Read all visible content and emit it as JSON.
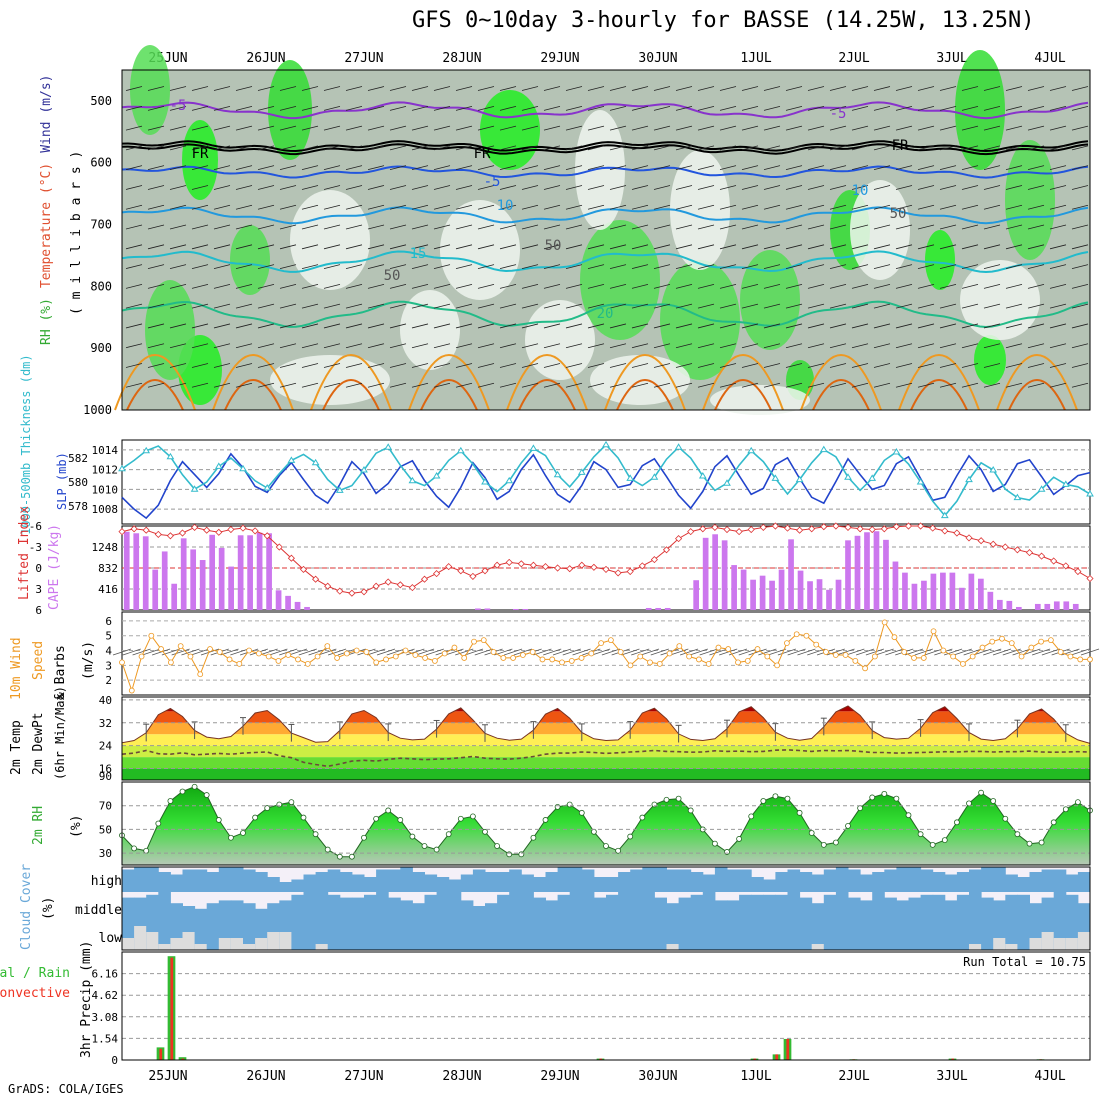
{
  "title": "GFS 0~10day 3-hourly for BASSE (14.25W, 13.25N)",
  "credit": "GrADS: COLA/IGES",
  "date_labels": [
    "25JUN",
    "26JUN",
    "27JUN",
    "28JUN",
    "29JUN",
    "30JUN",
    "1JUL",
    "2JUL",
    "3JUL",
    "4JUL"
  ],
  "panels": {
    "profile": {
      "ylabels": [
        "RH (%)",
        "Temperature (°C)",
        "Wind (m/s)"
      ],
      "ylabel_colors": [
        "#33aa33",
        "#e05030",
        "#333399"
      ],
      "axis_label": "( m i l l i b a r s )",
      "pressure_ticks": [
        "500",
        "600",
        "700",
        "800",
        "900",
        "1000"
      ],
      "contour_labels": [
        "-5",
        "FR",
        "FR",
        "FR",
        "-5",
        "-5",
        "10",
        "10",
        "15",
        "20",
        "50",
        "50",
        "50"
      ]
    },
    "pressure": {
      "ylabel_left": "1000-500mb Thickness (dm)",
      "ylabel_right": "SLP (mb)",
      "left_ticks": [
        "582",
        "580",
        "578"
      ],
      "right_ticks": [
        "1014",
        "1012",
        "1010",
        "1008"
      ]
    },
    "cape": {
      "ylabel_left": "Lifted Index",
      "ylabel_right": "CAPE (J/kg)",
      "li_ticks": [
        "-6",
        "-3",
        "0",
        "3",
        "6"
      ],
      "cape_ticks": [
        "1248",
        "832",
        "416"
      ]
    },
    "wind": {
      "ylabel_1": "10m Wind",
      "ylabel_2": "Speed",
      "ylabel_3": "& Barbs",
      "unit": "(m/s)",
      "ticks": [
        "6",
        "5",
        "4",
        "3",
        "2"
      ]
    },
    "temp": {
      "ylabel_1": "2m Temp",
      "ylabel_2": "2m DewPt",
      "ylabel_3": "(6hr Min/Max)",
      "ticks": [
        "40",
        "32",
        "24",
        "16",
        "90"
      ]
    },
    "rh": {
      "ylabel": "2m RH",
      "unit": "(%)",
      "ticks": [
        "70",
        "50",
        "30"
      ]
    },
    "cloud": {
      "ylabel": "Cloud Cover",
      "unit": "(%)",
      "levels": [
        "high",
        "middle",
        "low"
      ]
    },
    "precip": {
      "ylabel_1": "tal / Rain",
      "ylabel_2": "Convective",
      "axis_label": "3hr Precip (mm)",
      "ticks": [
        "6.16",
        "4.62",
        "3.08",
        "1.54",
        "0"
      ],
      "run_total": "Run Total = 10.75"
    }
  },
  "colors": {
    "rh_green": "#33cc33",
    "temp_label": "#e06030",
    "slp": "#2244cc",
    "thickness": "#33bbcc",
    "lifted_index": "#dd3333",
    "cape_bar": "#cc77ee",
    "wind_speed": "#ee9922",
    "cloud": "#6aa8d8",
    "precip_total": "#33bb33",
    "precip_conv": "#ee3322"
  },
  "chart_data": {
    "type": "line",
    "x_unit": "hours from 00Z 25JUN",
    "x_step_hours": 3,
    "pressure_profile": {
      "levels_mb": [
        500,
        600,
        700,
        800,
        900,
        1000
      ],
      "contours_degC": [
        {
          "label": "-5",
          "approx_pressure_mb": 510
        },
        {
          "label": "FR",
          "approx_pressure_mb": 575
        },
        {
          "label": "-5",
          "approx_pressure_mb": 618
        },
        {
          "label": "10",
          "approx_pressure_mb": 685
        },
        {
          "label": "15",
          "approx_pressure_mb": 760
        },
        {
          "label": "20",
          "approx_pressure_mb": 840
        }
      ]
    },
    "slp_mb": [
      1009.2,
      1008.0,
      1007.1,
      1008.4,
      1010.9,
      1012.8,
      1011.5,
      1010.2,
      1011.6,
      1013.6,
      1012.2,
      1010.3,
      1009.7,
      1011.4,
      1012.7,
      1011.0,
      1009.4,
      1008.6,
      1010.5,
      1012.8,
      1011.6,
      1009.6,
      1010.6,
      1012.3,
      1012.9,
      1010.9,
      1009.3,
      1008.2,
      1010.2,
      1012.7,
      1011.2,
      1009.0,
      1009.8,
      1012.0,
      1013.5,
      1011.4,
      1009.5,
      1008.7,
      1010.4,
      1012.8,
      1012.0,
      1010.2,
      1010.5,
      1012.4,
      1013.1,
      1011.3,
      1009.4,
      1008.1,
      1009.8,
      1012.3,
      1013.4,
      1011.4,
      1009.5,
      1010.1,
      1012.5,
      1013.2,
      1011.1,
      1009.2,
      1008.6,
      1010.8,
      1013.1,
      1011.5,
      1010.0,
      1010.4,
      1012.6,
      1013.3,
      1011.1,
      1008.9,
      1009.2,
      1011.4,
      1013.4,
      1012.0,
      1009.8,
      1010.5,
      1012.6,
      1013.0,
      1011.3,
      1009.5,
      1010.4,
      1011.4,
      1011.7
    ],
    "thickness_dm": [
      581.1,
      581.8,
      582.6,
      583.0,
      582.1,
      580.6,
      579.4,
      580.0,
      581.3,
      582.0,
      581.1,
      580.1,
      579.5,
      580.7,
      581.8,
      582.3,
      581.6,
      580.2,
      579.3,
      579.7,
      581.0,
      582.4,
      582.9,
      581.4,
      580.1,
      579.7,
      580.5,
      581.8,
      582.6,
      581.5,
      580.0,
      579.2,
      580.1,
      581.6,
      582.8,
      582.2,
      580.6,
      579.6,
      580.8,
      582.1,
      583.1,
      582.0,
      580.3,
      579.7,
      580.4,
      581.9,
      582.9,
      582.0,
      580.5,
      579.3,
      579.9,
      581.4,
      582.6,
      581.7,
      580.3,
      579.0,
      580.2,
      581.6,
      582.7,
      582.1,
      580.4,
      579.3,
      580.3,
      581.8,
      582.5,
      581.5,
      580.0,
      578.4,
      577.2,
      578.4,
      580.2,
      581.6,
      581.0,
      579.4,
      578.7,
      578.5,
      579.4,
      580.4,
      579.8,
      579.6,
      579.0
    ],
    "lifted_index": [
      -5.2,
      -5.6,
      -5.4,
      -4.8,
      -4.6,
      -5.0,
      -5.8,
      -5.4,
      -5.1,
      -5.5,
      -5.7,
      -5.3,
      -4.6,
      -3.0,
      -1.4,
      0.2,
      1.6,
      2.6,
      3.3,
      3.6,
      3.4,
      2.6,
      2.0,
      2.4,
      2.8,
      1.6,
      0.8,
      -0.2,
      0.4,
      1.2,
      0.4,
      -0.4,
      -0.8,
      -0.6,
      -0.4,
      -0.2,
      0.0,
      0.1,
      -0.4,
      -0.1,
      0.2,
      0.7,
      0.5,
      -0.3,
      -1.2,
      -2.6,
      -4.2,
      -5.2,
      -5.6,
      -5.8,
      -5.5,
      -5.2,
      -5.5,
      -5.8,
      -6.0,
      -5.7,
      -5.4,
      -5.6,
      -5.9,
      -6.0,
      -5.8,
      -5.6,
      -5.5,
      -5.6,
      -5.9,
      -6.0,
      -6.0,
      -5.7,
      -5.3,
      -5.0,
      -4.3,
      -3.9,
      -3.4,
      -3.0,
      -2.6,
      -2.2,
      -1.7,
      -1.0,
      -0.3,
      0.5,
      1.5
    ],
    "cape_jkg": [
      1550,
      1520,
      1460,
      800,
      1160,
      520,
      1420,
      1200,
      990,
      1490,
      1230,
      860,
      1480,
      1480,
      1530,
      1520,
      390,
      280,
      160,
      60,
      0,
      0,
      0,
      0,
      0,
      0,
      0,
      0,
      0,
      0,
      0,
      0,
      0,
      0,
      0,
      0,
      0,
      30,
      30,
      0,
      0,
      20,
      20,
      0,
      0,
      0,
      0,
      0,
      0,
      0,
      0,
      0,
      0,
      0,
      0,
      40,
      40,
      40,
      0,
      0,
      590,
      1430,
      1500,
      1380,
      890,
      800,
      600,
      680,
      580,
      800,
      1400,
      780,
      570,
      610,
      400,
      600,
      1380,
      1470,
      1540,
      1560,
      1390,
      960,
      740,
      520,
      580,
      720,
      740,
      740,
      440,
      720,
      620,
      360,
      200,
      180,
      60,
      0,
      120,
      120,
      170,
      170,
      120,
      0
    ],
    "wind_speed_ms": [
      3.2,
      1.3,
      3.6,
      5.0,
      4.1,
      3.2,
      4.3,
      3.6,
      2.4,
      4.1,
      3.9,
      3.4,
      3.1,
      4.0,
      3.8,
      3.6,
      3.3,
      3.7,
      3.4,
      3.1,
      3.6,
      4.3,
      3.5,
      3.8,
      4.0,
      3.9,
      3.2,
      3.4,
      3.6,
      4.0,
      3.7,
      3.5,
      3.3,
      3.8,
      4.2,
      3.5,
      4.6,
      4.7,
      3.9,
      3.5,
      3.5,
      3.7,
      3.9,
      3.4,
      3.4,
      3.2,
      3.3,
      3.5,
      3.8,
      4.5,
      4.7,
      3.9,
      3.0,
      3.6,
      3.2,
      3.1,
      3.8,
      4.3,
      3.6,
      3.4,
      3.1,
      4.2,
      4.1,
      3.2,
      3.3,
      4.1,
      3.6,
      3.0,
      4.5,
      5.1,
      5.0,
      4.4,
      3.9,
      3.7,
      3.7,
      3.3,
      2.8,
      3.6,
      5.9,
      4.9,
      3.9,
      3.5,
      3.5,
      5.3,
      4.0,
      3.6,
      3.1,
      3.6,
      4.2,
      4.6,
      4.8,
      4.5,
      3.6,
      4.2,
      4.6,
      4.7,
      3.9,
      3.6,
      3.4,
      3.4
    ],
    "temp_c": [
      25.0,
      25.8,
      28.5,
      34.8,
      37.0,
      34.2,
      29.3,
      27.0,
      26.4,
      27.2,
      30.8,
      35.4,
      36.3,
      33.0,
      28.4,
      26.8,
      25.2,
      25.4,
      29.3,
      35.1,
      36.3,
      33.8,
      28.6,
      26.6,
      26.0,
      26.3,
      29.8,
      35.1,
      37.2,
      33.0,
      28.3,
      26.6,
      25.9,
      26.3,
      29.4,
      35.0,
      37.0,
      33.6,
      28.6,
      26.4,
      25.8,
      26.0,
      29.4,
      35.4,
      37.1,
      33.4,
      28.1,
      26.2,
      25.8,
      26.4,
      29.9,
      35.8,
      37.6,
      33.8,
      28.7,
      26.6,
      25.9,
      26.5,
      30.6,
      35.8,
      37.9,
      34.6,
      29.3,
      26.8,
      26.3,
      26.6,
      30.1,
      35.5,
      37.6,
      33.5,
      28.6,
      26.3,
      25.8,
      26.4,
      29.9,
      35.1,
      36.8,
      33.3,
      28.3,
      26.0,
      24.8
    ],
    "dewpoint_c": [
      21.0,
      21.4,
      22.3,
      21.2,
      21.0,
      21.5,
      20.8,
      21.0,
      21.3,
      21.0,
      21.4,
      21.6,
      21.8,
      20.5,
      19.8,
      18.2,
      17.4,
      16.8,
      17.6,
      18.6,
      18.9,
      18.6,
      19.2,
      19.6,
      19.4,
      19.1,
      19.3,
      19.4,
      19.8,
      20.2,
      19.6,
      19.4,
      19.3,
      19.6,
      20.2,
      21.0,
      21.4,
      21.4,
      21.8,
      21.6,
      21.3,
      21.5,
      21.8,
      22.0,
      22.3,
      22.0,
      21.9,
      21.7,
      21.8,
      22.2,
      22.0,
      22.1,
      21.9,
      22.0,
      22.4,
      22.5,
      22.3,
      22.0,
      22.3,
      22.2,
      22.3,
      22.0,
      21.6,
      21.6,
      21.4,
      21.5,
      21.6,
      21.7,
      21.9,
      21.8,
      22.0,
      22.0,
      21.8,
      21.9,
      21.9,
      22.1,
      21.8,
      21.7,
      21.8,
      21.9,
      21.8
    ],
    "rh_pct": [
      45,
      34,
      32,
      55,
      74,
      82,
      86,
      79,
      58,
      43,
      47,
      60,
      68,
      71,
      73,
      60,
      46,
      33,
      27,
      27,
      43,
      59,
      66,
      58,
      44,
      36,
      33,
      46,
      59,
      61,
      48,
      36,
      29,
      29,
      43,
      58,
      69,
      71,
      64,
      48,
      36,
      32,
      44,
      60,
      71,
      75,
      76,
      66,
      50,
      38,
      31,
      42,
      61,
      74,
      78,
      76,
      64,
      47,
      37,
      39,
      53,
      68,
      77,
      80,
      76,
      62,
      46,
      37,
      41,
      56,
      72,
      81,
      74,
      59,
      46,
      38,
      39,
      56,
      67,
      73,
      66
    ],
    "cloud_cover": {
      "note": "fractions for high / middle / low layers per 3-hour step",
      "high": [
        0.9,
        1.0,
        1.0,
        0.8,
        0.7,
        0.9,
        0.9,
        0.8,
        1.0,
        1.0,
        0.9,
        0.8,
        0.6,
        0.4,
        0.5,
        0.7,
        0.8,
        0.9,
        0.8,
        0.7,
        0.6,
        0.9,
        0.9,
        1.0,
        0.8,
        0.7,
        0.6,
        0.5,
        0.7,
        0.9,
        0.8,
        0.8,
        0.9,
        0.7,
        0.6,
        0.8,
        1.0,
        1.0,
        0.9,
        0.6,
        0.6,
        0.8,
        0.9,
        1.0,
        1.0,
        0.9,
        0.9,
        0.8,
        0.7,
        1.0,
        0.9,
        0.9,
        0.6,
        0.5,
        0.8,
        0.9,
        0.8,
        0.7,
        0.9,
        1.0,
        0.9,
        0.7,
        0.8,
        0.9,
        1.0,
        1.0,
        0.9,
        0.8,
        0.7,
        0.8,
        0.9,
        1.0,
        1.0,
        0.7,
        0.6,
        0.8,
        0.9,
        0.9,
        0.7,
        0.8
      ],
      "middle": [
        0.8,
        0.8,
        0.9,
        1.0,
        0.6,
        0.5,
        0.4,
        0.6,
        0.7,
        0.7,
        0.6,
        0.4,
        0.6,
        0.7,
        0.9,
        1.0,
        1.0,
        0.9,
        0.8,
        0.8,
        0.9,
        1.0,
        0.8,
        0.7,
        0.6,
        0.9,
        1.0,
        1.0,
        0.7,
        0.5,
        0.6,
        0.9,
        1.0,
        1.0,
        0.8,
        0.7,
        0.9,
        1.0,
        1.0,
        0.8,
        0.9,
        1.0,
        1.0,
        1.0,
        0.8,
        0.6,
        0.8,
        0.9,
        1.0,
        0.7,
        0.7,
        0.9,
        0.9,
        0.9,
        0.9,
        1.0,
        0.8,
        0.6,
        0.9,
        1.0,
        0.8,
        0.7,
        1.0,
        0.8,
        0.7,
        0.8,
        0.9,
        0.9,
        0.7,
        0.9,
        1.0,
        0.8,
        0.7,
        0.9,
        0.9,
        0.6,
        0.8,
        1.0,
        0.9,
        0.6
      ],
      "low": [
        0.2,
        0.4,
        0.3,
        0.1,
        0.2,
        0.3,
        0.1,
        0.0,
        0.2,
        0.2,
        0.1,
        0.2,
        0.3,
        0.3,
        0.0,
        0.0,
        0.1,
        0.0,
        0.0,
        0.0,
        0.0,
        0.0,
        0.0,
        0.0,
        0.0,
        0.0,
        0.0,
        0.0,
        0.0,
        0.0,
        0.0,
        0.0,
        0.0,
        0.0,
        0.0,
        0.0,
        0.0,
        0.0,
        0.0,
        0.0,
        0.0,
        0.0,
        0.0,
        0.0,
        0.0,
        0.1,
        0.0,
        0.0,
        0.0,
        0.0,
        0.0,
        0.0,
        0.0,
        0.0,
        0.0,
        0.0,
        0.0,
        0.1,
        0.0,
        0.0,
        0.0,
        0.0,
        0.0,
        0.0,
        0.0,
        0.0,
        0.0,
        0.0,
        0.0,
        0.0,
        0.1,
        0.0,
        0.2,
        0.1,
        0.0,
        0.2,
        0.3,
        0.2,
        0.2,
        0.3
      ]
    },
    "precip_mm": {
      "total": [
        0,
        0,
        0,
        0.9,
        7.4,
        0.2,
        0,
        0,
        0,
        0,
        0,
        0,
        0,
        0,
        0,
        0,
        0,
        0,
        0,
        0,
        0,
        0,
        0,
        0,
        0,
        0,
        0,
        0,
        0,
        0,
        0,
        0,
        0,
        0,
        0,
        0,
        0,
        0,
        0,
        0,
        0,
        0,
        0,
        0.1,
        0,
        0,
        0,
        0,
        0,
        0,
        0,
        0,
        0,
        0,
        0,
        0,
        0,
        0.1,
        0,
        0.4,
        1.5,
        0,
        0,
        0,
        0,
        0,
        0.05,
        0,
        0,
        0,
        0,
        0,
        0,
        0,
        0,
        0.1,
        0,
        0,
        0,
        0,
        0,
        0,
        0,
        0.05,
        0,
        0,
        0,
        0
      ],
      "convective": [
        0,
        0,
        0,
        0.8,
        7.3,
        0.1,
        0,
        0,
        0,
        0,
        0,
        0,
        0,
        0,
        0,
        0,
        0,
        0,
        0,
        0,
        0,
        0,
        0,
        0,
        0,
        0,
        0,
        0,
        0,
        0,
        0,
        0,
        0,
        0,
        0,
        0,
        0,
        0,
        0,
        0,
        0,
        0,
        0,
        0.1,
        0,
        0,
        0,
        0,
        0,
        0,
        0,
        0,
        0,
        0,
        0,
        0,
        0,
        0.1,
        0,
        0.4,
        1.5,
        0,
        0,
        0,
        0,
        0,
        0.05,
        0,
        0,
        0,
        0,
        0,
        0,
        0,
        0,
        0.1,
        0,
        0,
        0,
        0,
        0,
        0,
        0,
        0.05,
        0,
        0,
        0,
        0
      ]
    }
  }
}
